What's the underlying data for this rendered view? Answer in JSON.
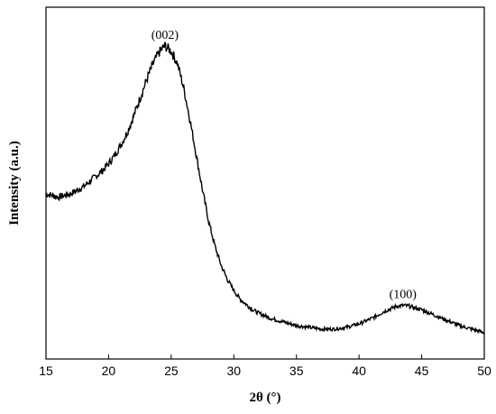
{
  "chart_data": {
    "type": "line",
    "title": "",
    "xlabel": "2θ (°)",
    "ylabel": "Intensity (a.u.)",
    "xlim": [
      15,
      50
    ],
    "ylim": [
      0,
      1
    ],
    "x_ticks": [
      15,
      20,
      25,
      30,
      35,
      40,
      45,
      50
    ],
    "x_tick_labels": [
      "15",
      "20",
      "25",
      "30",
      "35",
      "40",
      "45",
      "50"
    ],
    "y_ticks_shown": false,
    "grid": false,
    "legend": "none",
    "line_color": "#000000",
    "series": [
      {
        "points": [
          [
            15.0,
            0.47
          ],
          [
            15.5,
            0.465
          ],
          [
            16.0,
            0.46
          ],
          [
            16.5,
            0.465
          ],
          [
            17.0,
            0.47
          ],
          [
            17.5,
            0.48
          ],
          [
            18.0,
            0.49
          ],
          [
            18.5,
            0.505
          ],
          [
            19.0,
            0.52
          ],
          [
            19.5,
            0.535
          ],
          [
            20.0,
            0.555
          ],
          [
            20.5,
            0.58
          ],
          [
            21.0,
            0.61
          ],
          [
            21.5,
            0.645
          ],
          [
            22.0,
            0.69
          ],
          [
            22.5,
            0.74
          ],
          [
            23.0,
            0.79
          ],
          [
            23.5,
            0.835
          ],
          [
            24.0,
            0.87
          ],
          [
            24.5,
            0.89
          ],
          [
            25.0,
            0.875
          ],
          [
            25.5,
            0.84
          ],
          [
            26.0,
            0.77
          ],
          [
            26.5,
            0.68
          ],
          [
            27.0,
            0.58
          ],
          [
            27.5,
            0.48
          ],
          [
            28.0,
            0.39
          ],
          [
            28.5,
            0.32
          ],
          [
            29.0,
            0.265
          ],
          [
            29.5,
            0.225
          ],
          [
            30.0,
            0.195
          ],
          [
            30.5,
            0.17
          ],
          [
            31.0,
            0.155
          ],
          [
            31.5,
            0.14
          ],
          [
            32.0,
            0.13
          ],
          [
            33.0,
            0.115
          ],
          [
            34.0,
            0.105
          ],
          [
            35.0,
            0.095
          ],
          [
            36.0,
            0.09
          ],
          [
            37.0,
            0.085
          ],
          [
            38.0,
            0.085
          ],
          [
            39.0,
            0.09
          ],
          [
            40.0,
            0.1
          ],
          [
            41.0,
            0.115
          ],
          [
            42.0,
            0.135
          ],
          [
            43.0,
            0.15
          ],
          [
            43.5,
            0.152
          ],
          [
            44.0,
            0.15
          ],
          [
            45.0,
            0.14
          ],
          [
            46.0,
            0.125
          ],
          [
            47.0,
            0.11
          ],
          [
            48.0,
            0.095
          ],
          [
            49.0,
            0.085
          ],
          [
            50.0,
            0.075
          ]
        ]
      }
    ],
    "annotations": [
      {
        "text": "(002)",
        "x": 24.5,
        "y": 0.89
      },
      {
        "text": "(100)",
        "x": 43.5,
        "y": 0.152
      }
    ]
  }
}
